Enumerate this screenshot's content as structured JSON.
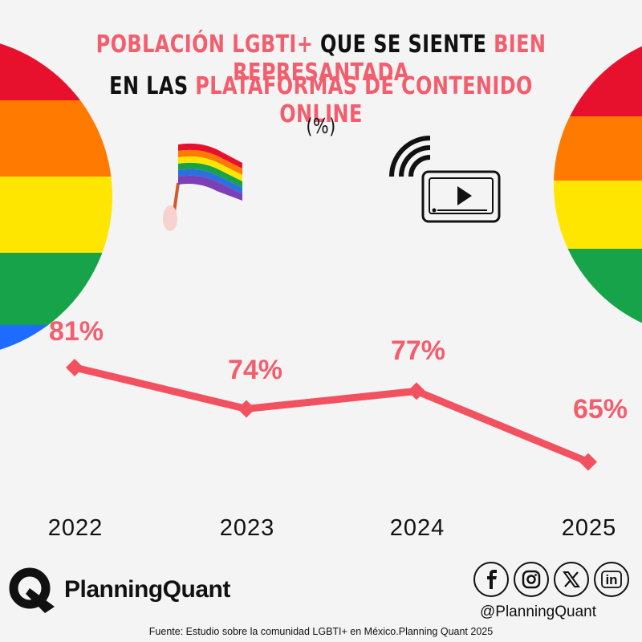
{
  "title": {
    "line1_a": "POBLACIÓN LGBTI+",
    "line1_b": " QUE SE SIENTE ",
    "line1_c": "BIEN REPRESANTADA",
    "line2_a": "EN LAS ",
    "line2_b": "PLATAFORMAS DE CONTENIDO ONLINE",
    "unit": "(%)"
  },
  "colors": {
    "accent": "#f25e6d",
    "line": "#f2525f",
    "rainbow": [
      "#e8112d",
      "#ff7a00",
      "#ffe600",
      "#16a34a",
      "#1e6bff"
    ]
  },
  "icons": [
    "pride-flag-icon",
    "streaming-video-icon"
  ],
  "chart_data": {
    "type": "line",
    "categories": [
      "2022",
      "2023",
      "2024",
      "2025"
    ],
    "values": [
      81,
      74,
      77,
      65
    ],
    "value_labels": [
      "81%",
      "74%",
      "77%",
      "65%"
    ],
    "title": "POBLACIÓN LGBTI+ QUE SE SIENTE BIEN REPRESANTADA EN LAS PLATAFORMAS DE CONTENIDO ONLINE",
    "ylabel": "(%)",
    "grid": false,
    "legend": "none"
  },
  "brand": {
    "name": "PlanningQuant",
    "name_part1": "Planning",
    "name_part2": "Quant"
  },
  "social": {
    "icons": [
      "facebook-icon",
      "instagram-icon",
      "x-icon",
      "linkedin-icon"
    ],
    "handle": "@PlanningQuant"
  },
  "source": "Fuente: Estudio sobre la comunidad LGBTI+ en México.Planning Quant 2025"
}
